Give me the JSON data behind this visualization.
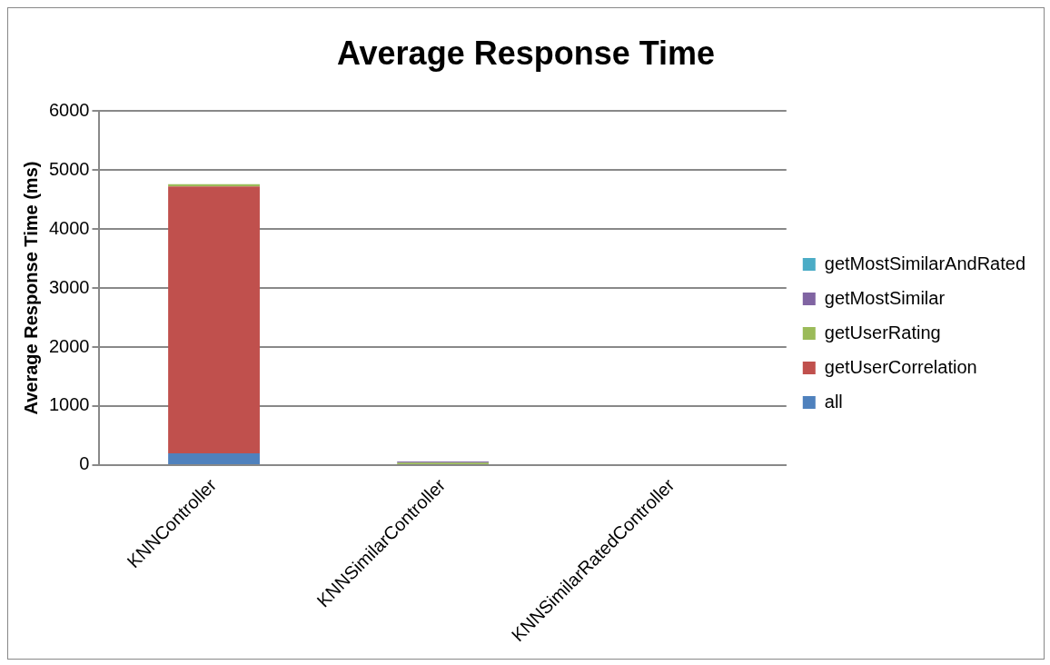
{
  "chart_data": {
    "type": "bar",
    "title": "Average Response Time",
    "ylabel": "Average Response Time (ms)",
    "categories": [
      "KNNController",
      "KNNSimilarController",
      "KNNSimilarRatedController"
    ],
    "stacked": true,
    "series": [
      {
        "name": "all",
        "color": "#4f81bd",
        "values": [
          200,
          0,
          0
        ]
      },
      {
        "name": "getUserCorrelation",
        "color": "#c0504d",
        "values": [
          4520,
          0,
          0
        ]
      },
      {
        "name": "getUserRating",
        "color": "#9bbb59",
        "values": [
          40,
          40,
          0
        ]
      },
      {
        "name": "getMostSimilar",
        "color": "#8064a2",
        "values": [
          0,
          20,
          0
        ]
      },
      {
        "name": "getMostSimilarAndRated",
        "color": "#4bacc6",
        "values": [
          0,
          0,
          0
        ]
      }
    ],
    "ylim": [
      0,
      6000
    ],
    "yticks": [
      0,
      1000,
      2000,
      3000,
      4000,
      5000,
      6000
    ],
    "grid": "y",
    "legend": "right"
  }
}
